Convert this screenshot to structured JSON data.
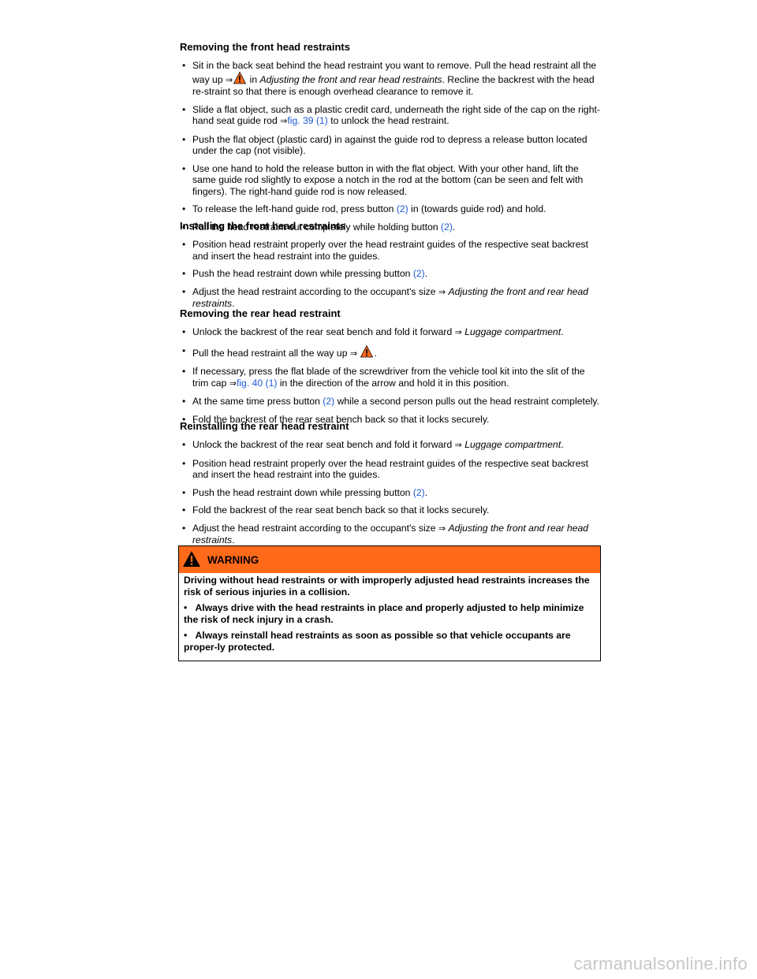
{
  "sections": [
    {
      "heading": "Removing the front head restraints",
      "items": [
        {
          "parts": [
            {
              "t": "Sit in the back seat behind the head restraint you want to remove. Pull the head restraint all the way up "
            },
            {
              "t": "⇒",
              "k": "arrow"
            },
            {
              "k": "warn"
            },
            {
              "t": " in "
            },
            {
              "t": "Adjusting the front and rear head restraints",
              "k": "xref"
            },
            {
              "t": ". Recline the backrest with the head re-straint so that there is enough overhead clearance to remove it."
            }
          ]
        },
        {
          "parts": [
            {
              "t": "Slide a flat object, such as a plastic credit card, underneath the right side of the cap on the right-hand seat guide rod "
            },
            {
              "t": "⇒",
              "k": "arrow"
            },
            {
              "t": "fig. 39 (1)",
              "k": "link"
            },
            {
              "t": " to unlock the head restraint."
            }
          ]
        },
        {
          "parts": [
            {
              "t": "Push the flat object (plastic card) in against the guide rod to depress a release button located under the cap (not visible)."
            }
          ]
        },
        {
          "parts": [
            {
              "t": "Use one hand to hold the release button in with the flat object. With your other hand, lift the same guide rod slightly to expose a notch in the rod at the bottom (can be seen and felt with fingers). The right-hand guide rod is now released."
            }
          ]
        },
        {
          "parts": [
            {
              "t": "To release the left-hand guide rod, press button "
            },
            {
              "t": "(2)",
              "k": "link"
            },
            {
              "t": " in (towards guide rod) and hold."
            }
          ]
        },
        {
          "parts": [
            {
              "t": "Pull the head restraint out completely while holding button "
            },
            {
              "t": "(2)",
              "k": "link"
            },
            {
              "t": "."
            }
          ]
        }
      ]
    },
    {
      "heading": "Installing the front head restraints",
      "items": [
        {
          "parts": [
            {
              "t": "Position head restraint properly over the head restraint guides of the respective seat backrest and insert the head restraint into the guides."
            }
          ]
        },
        {
          "parts": [
            {
              "t": "Push the head restraint down while pressing button  "
            },
            {
              "t": "(2)",
              "k": "link"
            },
            {
              "t": "."
            }
          ]
        },
        {
          "parts": [
            {
              "t": "Adjust the head restraint according to the occupant's size  "
            },
            {
              "t": "⇒",
              "k": "arrow"
            },
            {
              "t": "  "
            },
            {
              "t": "Adjusting the front and rear head restraints",
              "k": "xref"
            },
            {
              "t": "."
            }
          ]
        }
      ]
    },
    {
      "heading": "Removing the rear head restraint",
      "items": [
        {
          "parts": [
            {
              "t": "Unlock the backrest of the rear seat bench and fold it forward  "
            },
            {
              "t": "⇒",
              "k": "arrow"
            },
            {
              "t": "  "
            },
            {
              "t": "Luggage compartment",
              "k": "xref"
            },
            {
              "t": "."
            }
          ]
        },
        {
          "parts": [
            {
              "t": "Pull the head restraint all the way up "
            },
            {
              "t": "⇒",
              "k": "arrow"
            },
            {
              "t": " "
            },
            {
              "k": "warn"
            },
            {
              "t": "."
            }
          ]
        },
        {
          "parts": [
            {
              "t": "If necessary, press the flat blade of the screwdriver from the vehicle tool kit into the slit of the trim cap "
            },
            {
              "t": "⇒",
              "k": "arrow"
            },
            {
              "t": "fig. 40 (1)",
              "k": "link"
            },
            {
              "t": " in the direction of the arrow and hold it in this position."
            }
          ]
        },
        {
          "parts": [
            {
              "t": "At the same time press button "
            },
            {
              "t": "(2)",
              "k": "link"
            },
            {
              "t": " while a second person pulls out the head restraint completely."
            }
          ]
        },
        {
          "parts": [
            {
              "t": "Fold the backrest of the rear seat bench back so that it locks securely."
            }
          ]
        }
      ]
    },
    {
      "heading": "Reinstalling the rear head restraint",
      "items": [
        {
          "parts": [
            {
              "t": "Unlock the backrest of the rear seat bench and fold it forward  "
            },
            {
              "t": "⇒",
              "k": "arrow"
            },
            {
              "t": "  "
            },
            {
              "t": "Luggage compartment",
              "k": "xref"
            },
            {
              "t": "."
            }
          ]
        },
        {
          "parts": [
            {
              "t": "Position head restraint properly over the head restraint guides of the respective seat backrest and insert the head restraint into the guides."
            }
          ]
        },
        {
          "parts": [
            {
              "t": "Push the head restraint down while pressing button  "
            },
            {
              "t": "(2)",
              "k": "link"
            },
            {
              "t": "."
            }
          ]
        },
        {
          "parts": [
            {
              "t": "Fold the backrest of the rear seat bench back so that it locks securely."
            }
          ]
        },
        {
          "parts": [
            {
              "t": "Adjust the head restraint according to the occupant's size  "
            },
            {
              "t": "⇒",
              "k": "arrow"
            },
            {
              "t": "  "
            },
            {
              "t": "Adjusting the front and rear head restraints",
              "k": "xref"
            },
            {
              "t": "."
            }
          ]
        }
      ]
    }
  ],
  "warning": {
    "title": "WARNING",
    "intro": "Driving without head restraints or with improperly adjusted head restraints increases the risk of serious injuries in a collision.",
    "items": [
      "Always drive with the head restraints in place and properly adjusted to help minimize the risk of neck injury in a crash.",
      "Always reinstall head restraints as soon as possible so that vehicle occupants are proper-ly protected."
    ]
  },
  "bullet": "•",
  "watermark": "carmanualsonline.info",
  "colors": {
    "link": "#1f5bd6",
    "warning_header": "#ff6a1a"
  }
}
